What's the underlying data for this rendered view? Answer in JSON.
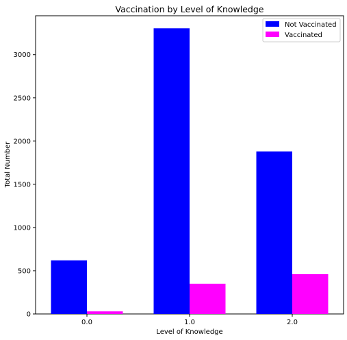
{
  "chart_data": {
    "type": "bar",
    "title": "Vaccination by Level of Knowledge",
    "xlabel": "Level of Knowledge",
    "ylabel": "Total Number",
    "categories": [
      "0.0",
      "1.0",
      "2.0"
    ],
    "series": [
      {
        "name": "Not Vaccinated",
        "color": "#0000ff",
        "values": [
          620,
          3305,
          1880
        ]
      },
      {
        "name": "Vaccinated",
        "color": "#ff00ff",
        "values": [
          30,
          350,
          460
        ]
      }
    ],
    "ylim": [
      0,
      3450
    ],
    "yticks": [
      0,
      500,
      1000,
      1500,
      2000,
      2500,
      3000
    ],
    "legend_position": "top-right",
    "grid": false
  }
}
